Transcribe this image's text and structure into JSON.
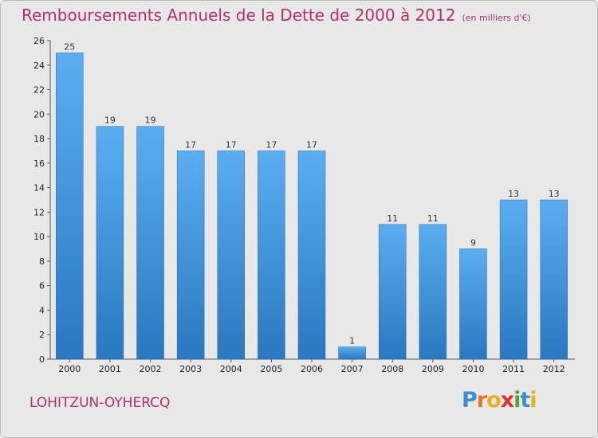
{
  "chart_data": {
    "type": "bar",
    "title": "Remboursements Annuels de la Dette de 2000 à 2012",
    "subtitle": "(en milliers d'€)",
    "categories": [
      "2000",
      "2001",
      "2002",
      "2003",
      "2004",
      "2005",
      "2006",
      "2007",
      "2008",
      "2009",
      "2010",
      "2011",
      "2012"
    ],
    "values": [
      25,
      19,
      19,
      17,
      17,
      17,
      17,
      1,
      11,
      11,
      9,
      13,
      13
    ],
    "xlabel": "",
    "ylabel": "",
    "ylim": [
      0,
      26
    ],
    "yticks": [
      0,
      2,
      4,
      6,
      8,
      10,
      12,
      14,
      16,
      18,
      20,
      22,
      24,
      26
    ],
    "grid": false,
    "bar_color": "#4a9fe0"
  },
  "footer": {
    "location": "LOHITZUN-OYHERCQ",
    "logo_letters": [
      "P",
      "r",
      "o",
      "x",
      "i",
      "t",
      "i"
    ],
    "logo_colors": [
      "#3a8fd0",
      "#e07820",
      "#e8b020",
      "#e03030",
      "#5aa030",
      "#3a8fd0",
      "#e8b020"
    ]
  }
}
